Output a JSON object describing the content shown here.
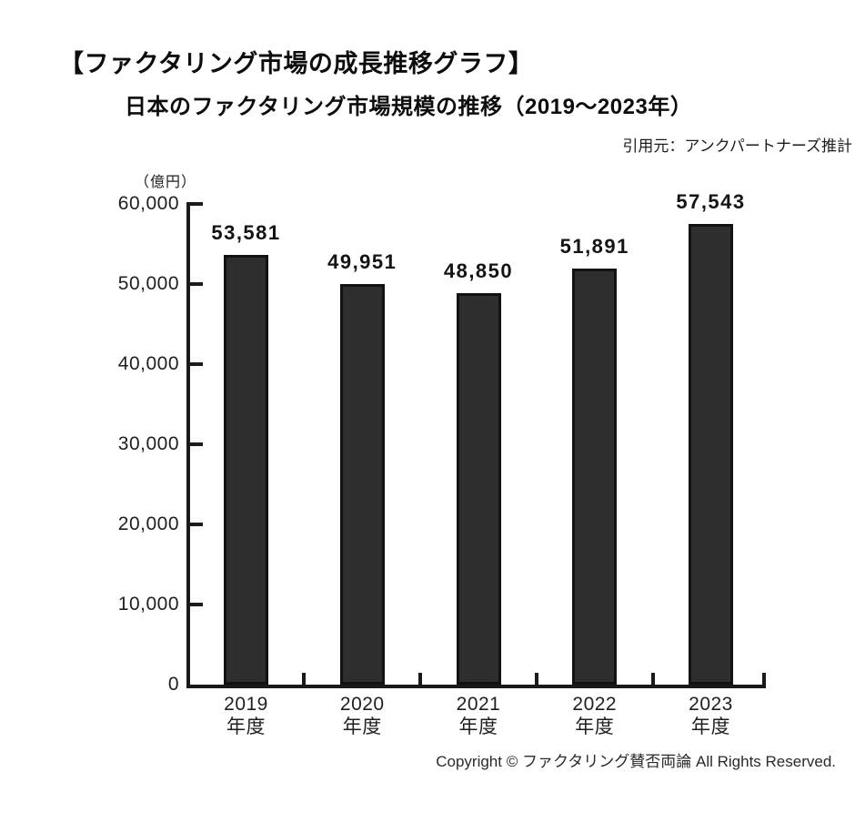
{
  "page": {
    "heading": "【ファクタリング市場の成長推移グラフ】",
    "chart_title": "日本のファクタリング市場規模の推移（2019～2023年）",
    "source_note": "引用元：アンクパートナーズ推計",
    "copyright": "Copyright © ファクタリング賛否両論 All Rights Reserved."
  },
  "chart_data": {
    "type": "bar",
    "title": "日本のファクタリング市場規模の推移（2019～2023年）",
    "unit_label": "（億円）",
    "categories": [
      "2019年度",
      "2020年度",
      "2021年度",
      "2022年度",
      "2023年度"
    ],
    "x_tick_labels": [
      [
        "2019",
        "年度"
      ],
      [
        "2020",
        "年度"
      ],
      [
        "2021",
        "年度"
      ],
      [
        "2022",
        "年度"
      ],
      [
        "2023",
        "年度"
      ]
    ],
    "values": [
      53581,
      49951,
      48850,
      51891,
      57543
    ],
    "value_labels": [
      "53,581",
      "49,951",
      "48,850",
      "51,891",
      "57,543"
    ],
    "xlabel": "",
    "ylabel": "（億円）",
    "ylim": [
      0,
      60000
    ],
    "ytick_interval": 10000,
    "ytick_labels": [
      "0",
      "10,000",
      "20,000",
      "30,000",
      "40,000",
      "50,000",
      "60,000"
    ],
    "grid": false,
    "legend": null,
    "annotation": "引用元：アンクパートナーズ推計",
    "bar_color": "#2e2e2e",
    "bar_border_color": "#121212",
    "axis_color": "#1a1a1a"
  }
}
